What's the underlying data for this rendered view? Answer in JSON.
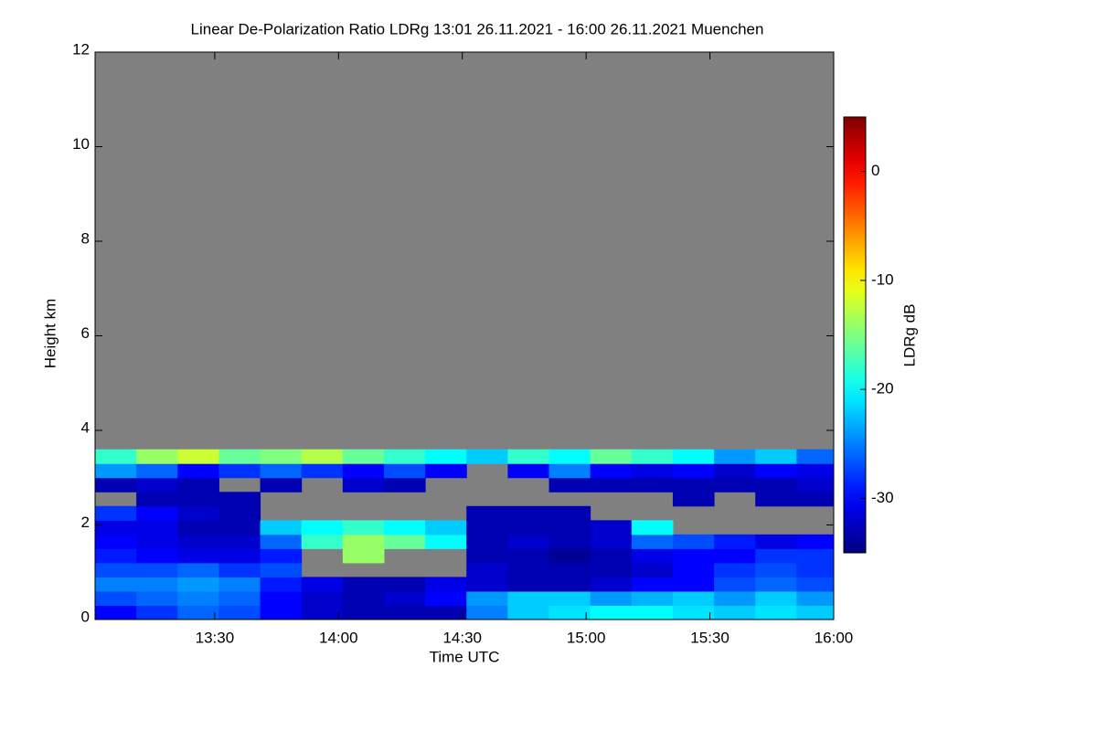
{
  "chart_data": {
    "type": "heatmap",
    "title": "Linear De-Polarization Ratio LDRg   13:01 26.11.2021 - 16:00 26.11.2021 Muenchen",
    "x_label": "Time UTC",
    "y_label": "Height km",
    "colorbar_label": "LDRg dB",
    "colormap": "jet",
    "missing_color": "#808080",
    "xlim": [
      781,
      960
    ],
    "ylim": [
      0,
      12
    ],
    "zlim": [
      -35,
      5
    ],
    "xticks": [
      {
        "value": 810,
        "label": "13:30"
      },
      {
        "value": 840,
        "label": "14:00"
      },
      {
        "value": 870,
        "label": "14:30"
      },
      {
        "value": 900,
        "label": "15:00"
      },
      {
        "value": 930,
        "label": "15:30"
      },
      {
        "value": 960,
        "label": "16:00"
      }
    ],
    "yticks": [
      0,
      2,
      4,
      6,
      8,
      10,
      12
    ],
    "zticks": [
      -30,
      -20,
      -10,
      0
    ],
    "x_edges": [
      781,
      791,
      801,
      811,
      821,
      831,
      841,
      851,
      861,
      871,
      881,
      891,
      901,
      911,
      921,
      931,
      941,
      951,
      960
    ],
    "y_edges": [
      0,
      0.3,
      0.6,
      0.9,
      1.2,
      1.5,
      1.8,
      2.1,
      2.4,
      2.7,
      3.0,
      3.3,
      3.6
    ],
    "z": [
      [
        -30,
        -28,
        -26,
        -27,
        -30,
        -32,
        -33,
        -33,
        -33,
        -25,
        -22,
        -21,
        -20,
        -20,
        -21,
        -22,
        -21,
        -22
      ],
      [
        -27,
        -26,
        -25,
        -26,
        -30,
        -32,
        -33,
        -32,
        -30,
        -24,
        -22,
        -22,
        -24,
        -23,
        -22,
        -24,
        -22,
        -24
      ],
      [
        -25,
        -25,
        -24,
        -25,
        -29,
        -31,
        -33,
        -33,
        -31,
        -32,
        -33,
        -33,
        -32,
        -30,
        -30,
        -27,
        -26,
        -27
      ],
      [
        -27,
        -27,
        -26,
        -28,
        -27,
        null,
        null,
        null,
        null,
        -32,
        -33,
        -33,
        -33,
        -32,
        -30,
        -28,
        -27,
        -28
      ],
      [
        -29,
        -30,
        -31,
        -31,
        -29,
        null,
        -14,
        null,
        null,
        -33,
        -33,
        -34,
        -33,
        -31,
        -30,
        -30,
        -28,
        -28
      ],
      [
        -30,
        -31,
        -32,
        -32,
        -26,
        -18,
        -14,
        -16,
        -20,
        -33,
        -32,
        -33,
        -32,
        -26,
        -27,
        -29,
        -31,
        -30
      ],
      [
        -31,
        -31,
        -33,
        -33,
        -22,
        -20,
        -18,
        -20,
        -22,
        -33,
        -33,
        -33,
        -32,
        -20,
        null,
        null,
        null,
        null
      ],
      [
        -28,
        -30,
        -32,
        -33,
        null,
        null,
        null,
        null,
        null,
        -33,
        -33,
        -33,
        null,
        null,
        null,
        null,
        null,
        null
      ],
      [
        null,
        -33,
        -33,
        -33,
        null,
        null,
        null,
        null,
        null,
        null,
        null,
        null,
        null,
        null,
        -33,
        null,
        -33,
        -33
      ],
      [
        -33,
        -32,
        -33,
        null,
        -33,
        null,
        -32,
        -33,
        null,
        null,
        null,
        -33,
        -33,
        -33,
        -33,
        -33,
        -33,
        -32
      ],
      [
        -24,
        -26,
        -30,
        -28,
        -26,
        -28,
        -30,
        -27,
        -30,
        null,
        -30,
        -25,
        -30,
        -31,
        -30,
        -32,
        -30,
        -31
      ],
      [
        -18,
        -14,
        -12,
        -16,
        -15,
        -13,
        -16,
        -18,
        -20,
        -22,
        -18,
        -20,
        -16,
        -18,
        -20,
        -24,
        -22,
        -26
      ]
    ]
  }
}
